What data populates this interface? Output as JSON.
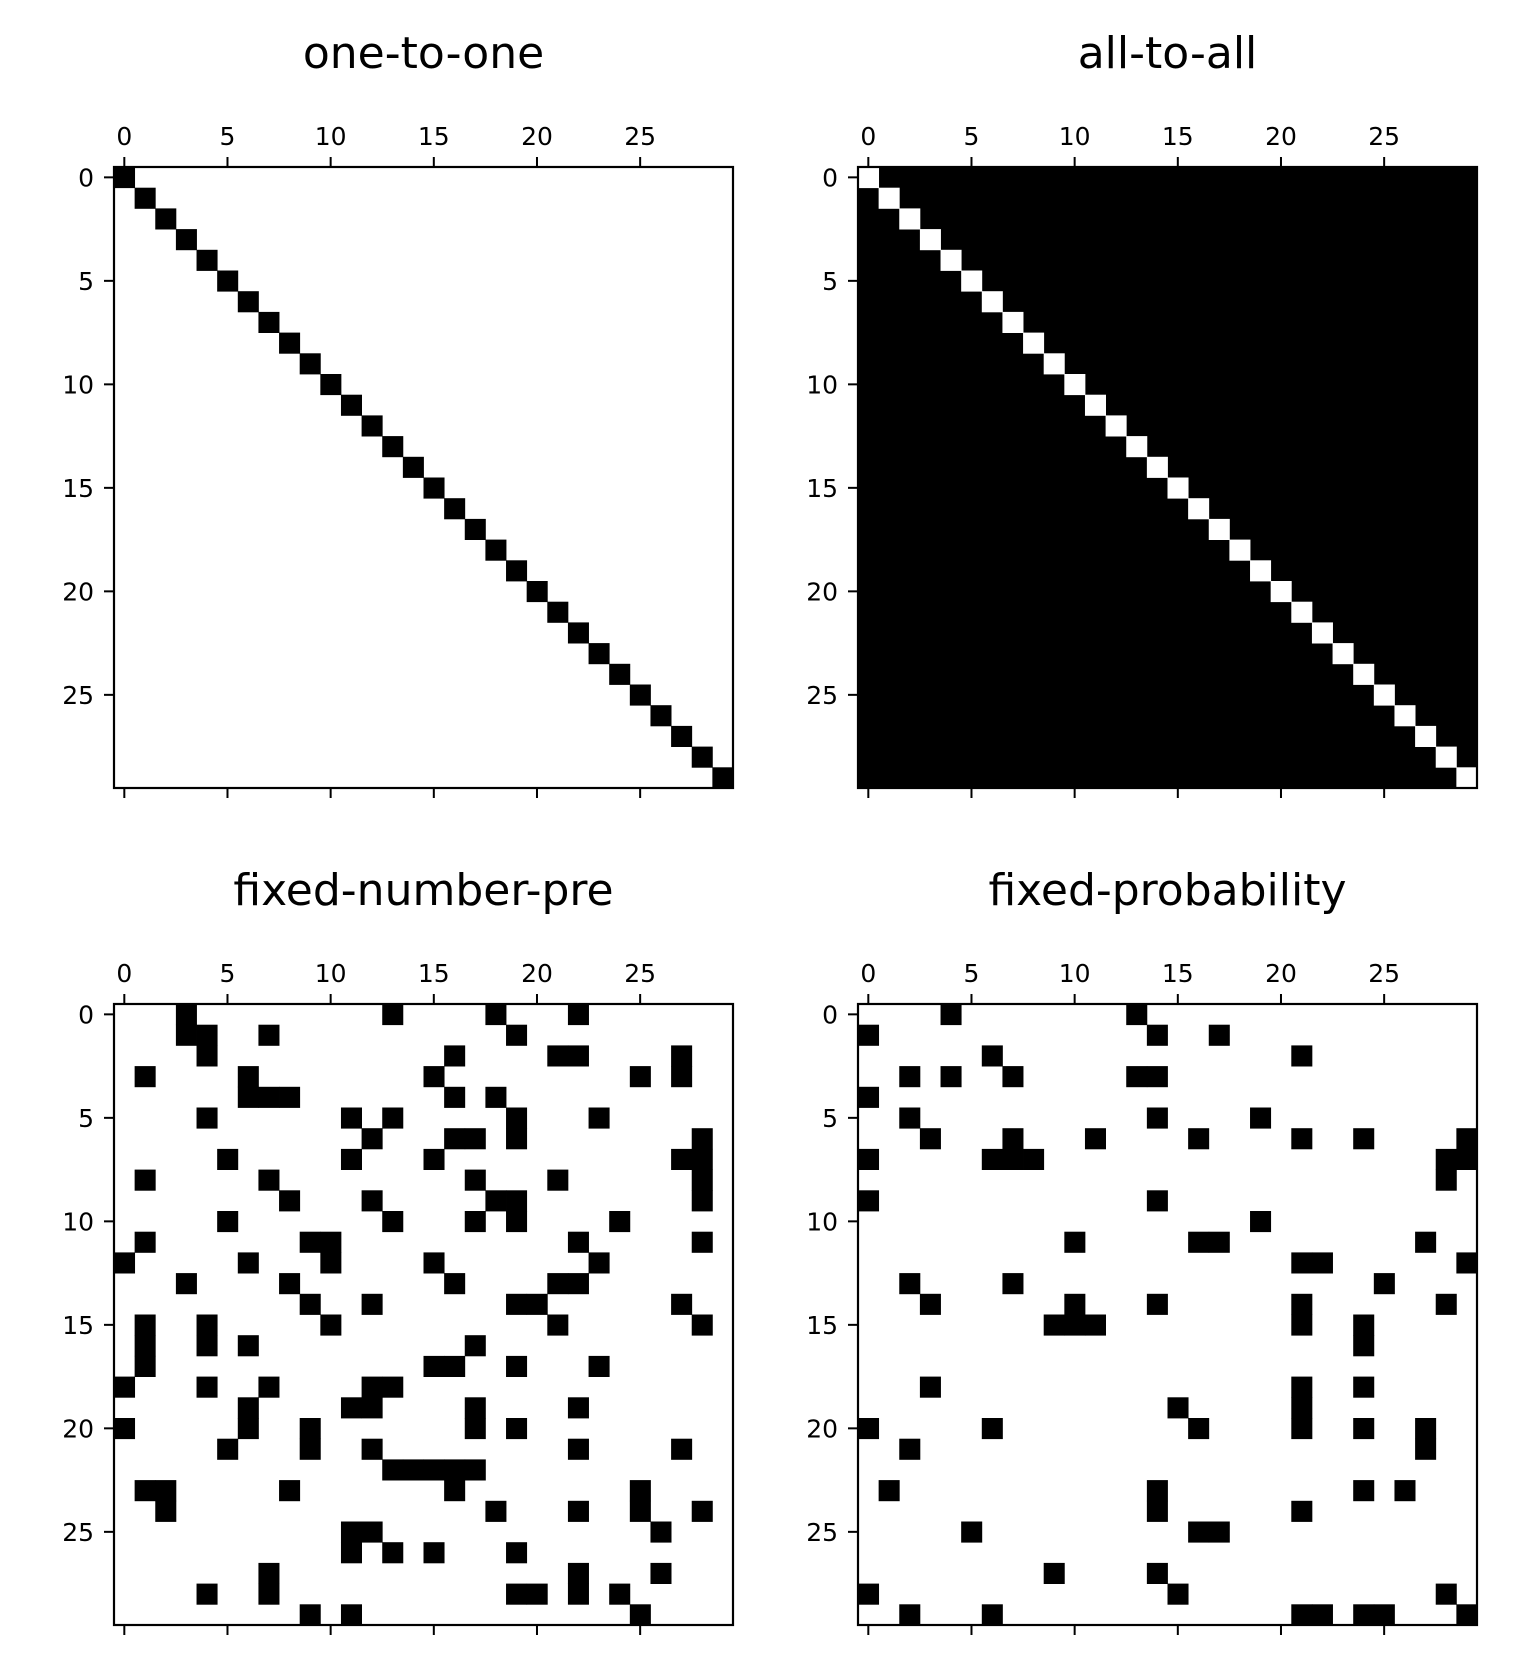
{
  "chart_data": [
    {
      "type": "heatmap",
      "title": "one-to-one",
      "size": 30,
      "xticks": [
        0,
        5,
        10,
        15,
        20,
        25
      ],
      "yticks": [
        0,
        5,
        10,
        15,
        20,
        25
      ],
      "xlim": [
        -0.5,
        29.5
      ],
      "ylim": [
        29.5,
        -0.5
      ],
      "x_axis_position": "top",
      "grid": false,
      "colormap": "binary (1 = black, 0 = white)",
      "mode": "filled",
      "rows": [
        "100000000000000000000000000000",
        "010000000000000000000000000000",
        "001000000000000000000000000000",
        "000100000000000000000000000000",
        "000010000000000000000000000000",
        "000001000000000000000000000000",
        "000000100000000000000000000000",
        "000000010000000000000000000000",
        "000000001000000000000000000000",
        "000000000100000000000000000000",
        "000000000010000000000000000000",
        "000000000001000000000000000000",
        "000000000000100000000000000000",
        "000000000000010000000000000000",
        "000000000000001000000000000000",
        "000000000000000100000000000000",
        "000000000000000010000000000000",
        "000000000000000001000000000000",
        "000000000000000000100000000000",
        "000000000000000000010000000000",
        "000000000000000000001000000000",
        "000000000000000000000100000000",
        "000000000000000000000010000000",
        "000000000000000000000001000000",
        "000000000000000000000000100000",
        "000000000000000000000000010000",
        "000000000000000000000000001000",
        "000000000000000000000000000100",
        "000000000000000000000000000010",
        "000000000000000000000000000001"
      ]
    },
    {
      "type": "heatmap",
      "title": "all-to-all",
      "size": 30,
      "xticks": [
        0,
        5,
        10,
        15,
        20,
        25
      ],
      "yticks": [
        0,
        5,
        10,
        15,
        20,
        25
      ],
      "xlim": [
        -0.5,
        29.5
      ],
      "ylim": [
        29.5,
        -0.5
      ],
      "x_axis_position": "top",
      "grid": false,
      "colormap": "binary (1 = black, 0 = white)",
      "mode": "all-except-diagonal",
      "rows": [
        "011111111111111111111111111111",
        "101111111111111111111111111111",
        "110111111111111111111111111111",
        "111011111111111111111111111111",
        "111101111111111111111111111111",
        "111110111111111111111111111111",
        "111111011111111111111111111111",
        "111111101111111111111111111111",
        "111111110111111111111111111111",
        "111111111011111111111111111111",
        "111111111101111111111111111111",
        "111111111110111111111111111111",
        "111111111111011111111111111111",
        "111111111111101111111111111111",
        "111111111111110111111111111111",
        "111111111111111011111111111111",
        "111111111111111101111111111111",
        "111111111111111110111111111111",
        "111111111111111111011111111111",
        "111111111111111111101111111111",
        "111111111111111111110111111111",
        "111111111111111111111011111111",
        "111111111111111111111101111111",
        "111111111111111111111110111111",
        "111111111111111111111111011111",
        "111111111111111111111111101111",
        "111111111111111111111111110111",
        "111111111111111111111111111011",
        "111111111111111111111111111101",
        "111111111111111111111111111110"
      ]
    },
    {
      "type": "heatmap",
      "title": "fixed-number-pre",
      "size": 30,
      "xticks": [
        0,
        5,
        10,
        15,
        20,
        25
      ],
      "yticks": [
        0,
        5,
        10,
        15,
        20,
        25
      ],
      "xlim": [
        -0.5,
        29.5
      ],
      "ylim": [
        29.5,
        -0.5
      ],
      "x_axis_position": "top",
      "grid": false,
      "colormap": "binary (1 = black, 0 = white)",
      "mode": "filled",
      "rows": [
        "000100000000010000100010000000",
        "000110010000000000010000000000",
        "000010000000000010000110000100",
        "010000100000000100000000010100",
        "000000111000000010100000000000",
        "000010000001010000010001000000",
        "000000000000100011010000000010",
        "000001000001000100000000000110",
        "010000010000000001000100000010",
        "000000001000100000110000000010",
        "000001000000010001010000100000",
        "010000000110000000000010000010",
        "100000100010000100000001000000",
        "000100001000000010000110000000",
        "000000000100100000011000000100",
        "010010000010000000000100000010",
        "010010100000000001000000000000",
        "010000000000000110010001000000",
        "100010010000110000000000000000",
        "000000100001100001000010000000",
        "100000100100000001010000000000",
        "000001000100100000000010000100",
        "000000000000011111000000000000",
        "011000001000000010000000010000",
        "001000000000000000100010010010",
        "000000000001100000000000001000",
        "000000000001010100010000000000",
        "000000010000000000000010001000",
        "000010010000000000011010100000",
        "000000000101000000000000010000"
      ]
    },
    {
      "type": "heatmap",
      "title": "fixed-probability",
      "size": 30,
      "xticks": [
        0,
        5,
        10,
        15,
        20,
        25
      ],
      "yticks": [
        0,
        5,
        10,
        15,
        20,
        25
      ],
      "xlim": [
        -0.5,
        29.5
      ],
      "ylim": [
        29.5,
        -0.5
      ],
      "x_axis_position": "top",
      "grid": false,
      "colormap": "binary (1 = black, 0 = white)",
      "mode": "filled",
      "rows": [
        "000010000000010000000000000000",
        "100000000000001001000000000000",
        "000000100000000000000100000000",
        "001010010000011000000000000000",
        "100000000000000000000000000000",
        "001000000000001000010000000000",
        "000100010001000010000100100001",
        "100000111000000000000000000011",
        "000000000000000000000000000010",
        "100000000000001000000000000000",
        "000000000000000000010000000000",
        "000000000010000011000000000100",
        "000000000000000000000110000001",
        "001000010000000000000000010000",
        "000100000010001000000100000010",
        "000000000111000000000100100000",
        "000000000000000000000000100000",
        "000000000000000000000000000000",
        "000100000000000000000100100000",
        "000000000000000100000100000000",
        "100000100000000010000100100100",
        "001000000000000000000000000100",
        "000000000000000000000000000000",
        "010000000000001000000000101000",
        "000000000000001000000100000000",
        "000001000000000011000000000000",
        "000000000000000000000000000000",
        "000000000100001000000000000000",
        "100000000000000100000000000010",
        "001000100000000000000110110001"
      ]
    }
  ]
}
